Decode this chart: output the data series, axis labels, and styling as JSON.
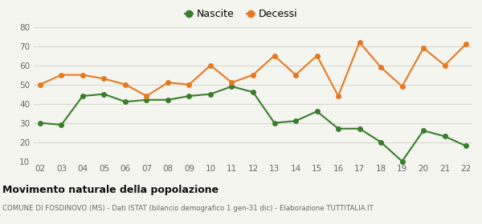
{
  "years": [
    "02",
    "03",
    "04",
    "05",
    "06",
    "07",
    "08",
    "09",
    "10",
    "11",
    "12",
    "13",
    "14",
    "15",
    "16",
    "17",
    "18",
    "19",
    "20",
    "21",
    "22"
  ],
  "nascite": [
    30,
    29,
    44,
    45,
    41,
    42,
    42,
    44,
    45,
    49,
    46,
    30,
    31,
    36,
    27,
    27,
    20,
    10,
    26,
    23,
    18
  ],
  "decessi": [
    50,
    55,
    55,
    53,
    50,
    44,
    51,
    50,
    60,
    51,
    55,
    65,
    55,
    65,
    44,
    72,
    59,
    49,
    69,
    60,
    71
  ],
  "nascite_color": "#3a7d2c",
  "decessi_color": "#e87820",
  "background_color": "#f5f5f0",
  "grid_color": "#d8d8d0",
  "ylim": [
    10,
    80
  ],
  "yticks": [
    10,
    20,
    30,
    40,
    50,
    60,
    70,
    80
  ],
  "title": "Movimento naturale della popolazione",
  "subtitle": "COMUNE DI FOSDINOVO (MS) - Dati ISTAT (bilancio demografico 1 gen-31 dic) - Elaborazione TUTTITALIA.IT",
  "legend_nascite": "Nascite",
  "legend_decessi": "Decessi",
  "marker_size": 4,
  "line_width": 1.5
}
